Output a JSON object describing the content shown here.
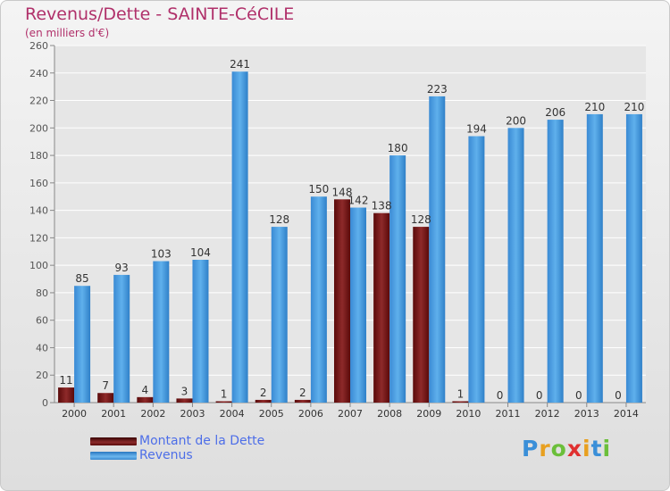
{
  "header": {
    "title": "Revenus/Dette - SAINTE-CéCILE",
    "subtitle": "(en milliers d'€)"
  },
  "chart_data": {
    "type": "bar",
    "categories": [
      "2000",
      "2001",
      "2002",
      "2003",
      "2004",
      "2005",
      "2006",
      "2007",
      "2008",
      "2009",
      "2010",
      "2011",
      "2012",
      "2013",
      "2014"
    ],
    "series": [
      {
        "name": "Montant de la Dette",
        "values": [
          11,
          7,
          4,
          3,
          1,
          2,
          2,
          148,
          138,
          128,
          1,
          0,
          0,
          0,
          0
        ],
        "color": "#7a1a1a"
      },
      {
        "name": "Revenus",
        "values": [
          85,
          93,
          103,
          104,
          241,
          128,
          150,
          142,
          180,
          223,
          194,
          200,
          206,
          210,
          210
        ],
        "color": "#3b93d8"
      }
    ],
    "ylim": [
      0,
      260
    ],
    "yticks": [
      0,
      20,
      40,
      60,
      80,
      100,
      120,
      140,
      160,
      180,
      200,
      220,
      240,
      260
    ],
    "grid": true,
    "legend": "bottom-left"
  },
  "legend": {
    "items": [
      {
        "label": "Montant de la Dette",
        "color": "#6b0f0f"
      },
      {
        "label": "Revenus",
        "color": "#3b93d8"
      }
    ]
  },
  "logo": {
    "text": "Proxiti"
  }
}
